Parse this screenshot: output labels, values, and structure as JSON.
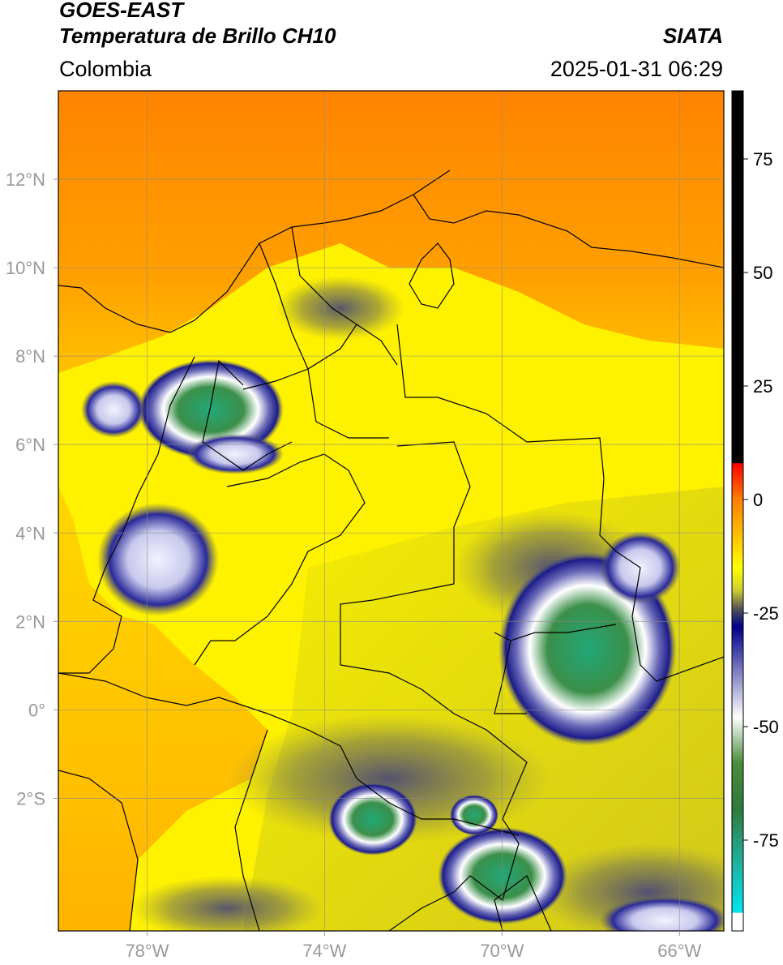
{
  "header": {
    "satellite": "GOES-EAST",
    "product": "Temperatura de Brillo CH10",
    "brand": "SIATA",
    "region": "Colombia",
    "datetime": "2025-01-31 06:29"
  },
  "map": {
    "lon_range": [
      -80,
      -65
    ],
    "lat_range": [
      -5,
      14
    ],
    "lon_ticks": [
      {
        "value": -78,
        "label": "78°W"
      },
      {
        "value": -74,
        "label": "74°W"
      },
      {
        "value": -70,
        "label": "70°W"
      },
      {
        "value": -66,
        "label": "66°W"
      }
    ],
    "lat_ticks": [
      {
        "value": 12,
        "label": "12°N"
      },
      {
        "value": 10,
        "label": "10°N"
      },
      {
        "value": 8,
        "label": "8°N"
      },
      {
        "value": 6,
        "label": "6°N"
      },
      {
        "value": 4,
        "label": "4°N"
      },
      {
        "value": 2,
        "label": "2°N"
      },
      {
        "value": 0,
        "label": "0°"
      },
      {
        "value": -2,
        "label": "2°S"
      }
    ],
    "grid": true,
    "background_colors": {
      "warm_north": "#ff8c00",
      "mid": "#ffcc00",
      "land": "#f6ec00",
      "amazon": "#c9c21a"
    }
  },
  "colorbar": {
    "range": [
      -95,
      90
    ],
    "ticks": [
      {
        "value": 75,
        "label": "75"
      },
      {
        "value": 50,
        "label": "50"
      },
      {
        "value": 25,
        "label": "25"
      },
      {
        "value": 0,
        "label": "0"
      },
      {
        "value": -25,
        "label": "-25"
      },
      {
        "value": -50,
        "label": "-50"
      },
      {
        "value": -75,
        "label": "-75"
      }
    ],
    "stops": [
      {
        "value": 90,
        "color": "#000000"
      },
      {
        "value": 8,
        "color": "#000000"
      },
      {
        "value": 7.9,
        "color": "#ff0000"
      },
      {
        "value": 0,
        "color": "#ff7f00"
      },
      {
        "value": -8,
        "color": "#ffc000"
      },
      {
        "value": -15,
        "color": "#ffff00"
      },
      {
        "value": -20,
        "color": "#cccc33"
      },
      {
        "value": -24,
        "color": "#555555"
      },
      {
        "value": -28,
        "color": "#00008b"
      },
      {
        "value": -38,
        "color": "#8080c0"
      },
      {
        "value": -48,
        "color": "#ffffff"
      },
      {
        "value": -58,
        "color": "#4a8c3a"
      },
      {
        "value": -68,
        "color": "#2f7a3a"
      },
      {
        "value": -80,
        "color": "#20b2a0"
      },
      {
        "value": -91,
        "color": "#00e5ee"
      },
      {
        "value": -91.1,
        "color": "#ffffff"
      },
      {
        "value": -95,
        "color": "#ffffff"
      }
    ]
  }
}
